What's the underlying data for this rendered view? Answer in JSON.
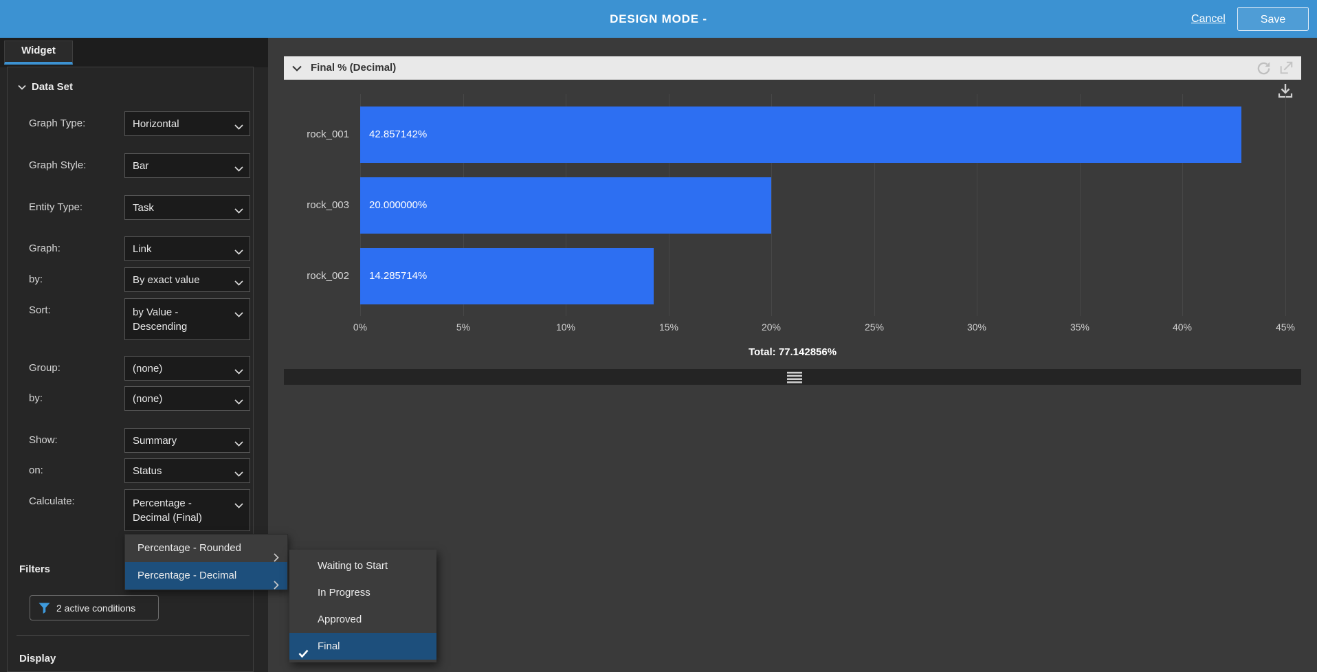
{
  "topbar": {
    "title": "DESIGN MODE -",
    "cancel": "Cancel",
    "save": "Save"
  },
  "sidebar": {
    "tab": "Widget",
    "section": "Data Set",
    "rows": [
      {
        "label": "Graph Type:",
        "value": "Horizontal"
      },
      {
        "label": "Graph Style:",
        "value": "Bar"
      },
      {
        "label": "Entity Type:",
        "value": "Task"
      },
      {
        "label": "Graph:",
        "value": "Link"
      },
      {
        "label": "by:",
        "value": "By exact value"
      },
      {
        "label": "Sort:",
        "value": "by Value - Descending"
      },
      {
        "label": "Group:",
        "value": "(none)"
      },
      {
        "label": "by:",
        "value": "(none)"
      },
      {
        "label": "Show:",
        "value": "Summary"
      },
      {
        "label": "on:",
        "value": "Status"
      },
      {
        "label": "Calculate:",
        "value": "Percentage - Decimal (Final)"
      }
    ],
    "filters_heading": "Filters",
    "filters_button": "2 active conditions",
    "display_heading": "Display"
  },
  "context_menu": {
    "items": [
      {
        "label": "Percentage - Rounded",
        "selected": false
      },
      {
        "label": "Percentage - Decimal",
        "selected": true
      }
    ],
    "submenu": [
      {
        "label": "Waiting to Start",
        "checked": false,
        "selected": false
      },
      {
        "label": "In Progress",
        "checked": false,
        "selected": false
      },
      {
        "label": "Approved",
        "checked": false,
        "selected": false
      },
      {
        "label": "Final",
        "checked": true,
        "selected": true
      }
    ]
  },
  "widget": {
    "title": "Final % (Decimal)",
    "total_label": "Total: 77.142856%"
  },
  "chart_data": {
    "type": "bar",
    "orientation": "horizontal",
    "title": "Final % (Decimal)",
    "categories": [
      "rock_001",
      "rock_003",
      "rock_002"
    ],
    "values": [
      42.857142,
      20.0,
      14.285714
    ],
    "value_labels": [
      "42.857142%",
      "20.000000%",
      "14.285714%"
    ],
    "x_ticks": [
      "0%",
      "5%",
      "10%",
      "15%",
      "20%",
      "25%",
      "30%",
      "35%",
      "40%",
      "45%"
    ],
    "xlim": [
      0,
      45
    ],
    "grid": true,
    "bar_color": "#2d6ff2",
    "total": "77.142856%"
  },
  "icons": {
    "chevron-down": "⌄",
    "chevron-right": "›",
    "check": "✓",
    "funnel": "filter-funnel",
    "refresh": "⟳",
    "expand": "↗",
    "download": "⤓",
    "grip": "≡"
  },
  "colors": {
    "topbar": "#3c92d2",
    "accent": "#3c92d2",
    "bar": "#2d6ff2",
    "menu_highlight": "#1d4f7c",
    "sidebar_bg": "#262626",
    "main_bg": "#3a3a3a",
    "widget_header": "#e9e9e9",
    "funnel": "#3e9bde"
  }
}
